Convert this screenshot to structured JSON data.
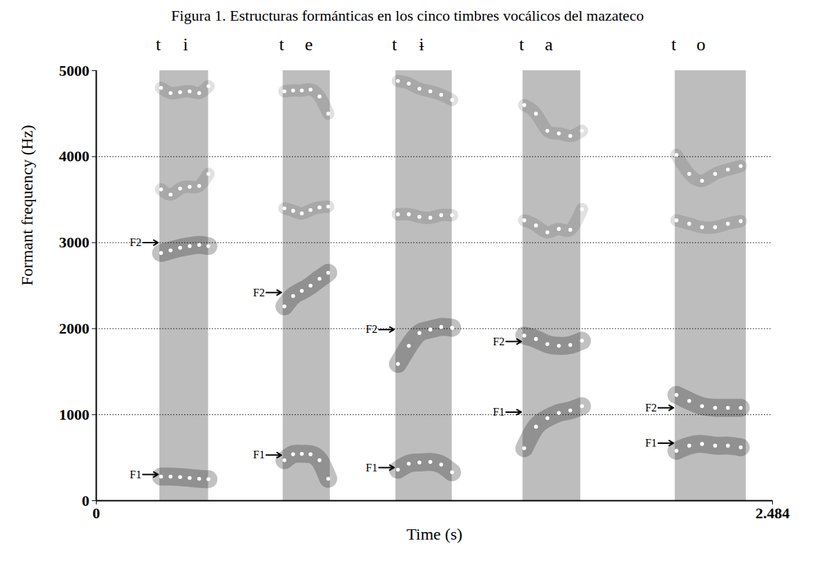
{
  "chart_data": {
    "type": "spectrogram",
    "title": "Figura 1. Estructuras formánticas en los cinco timbres vocálicos del mazateco",
    "x_label": "Time (s)",
    "y_label": "Formant frequency (Hz)",
    "xlim": [
      0,
      2.484
    ],
    "xticks": [
      0,
      2.484
    ],
    "ylim": [
      0,
      5000
    ],
    "yticks": [
      0,
      1000,
      2000,
      3000,
      4000,
      5000
    ],
    "grid": true,
    "marker": "dot",
    "color": "#ffffff",
    "segments": [
      {
        "consonant": "t",
        "vowel": "i",
        "start": 0.233,
        "end": 0.412,
        "x": [
          0.238,
          0.273,
          0.308,
          0.343,
          0.378,
          0.412
        ],
        "formants": [
          {
            "name": "F1",
            "arrow": 305,
            "values": [
              280,
              280,
              275,
              265,
              255,
              250
            ]
          },
          {
            "name": "F2",
            "arrow": 3000,
            "values": [
              2880,
              2910,
              2940,
              2960,
              2975,
              2960
            ]
          }
        ],
        "tracks": [
          [
            3620,
            3560,
            3630,
            3650,
            3660,
            3800
          ],
          [
            4800,
            4740,
            4750,
            4760,
            4740,
            4820
          ]
        ]
      },
      {
        "consonant": "t",
        "vowel": "e",
        "start": 0.686,
        "end": 0.859,
        "x": [
          0.691,
          0.723,
          0.755,
          0.787,
          0.82,
          0.852
        ],
        "formants": [
          {
            "name": "F1",
            "arrow": 530,
            "values": [
              470,
              540,
              545,
              540,
              470,
              255
            ]
          },
          {
            "name": "F2",
            "arrow": 2420,
            "values": [
              2260,
              2380,
              2440,
              2500,
              2580,
              2650
            ]
          }
        ],
        "tracks": [
          [
            3400,
            3370,
            3340,
            3380,
            3410,
            3420
          ],
          [
            4760,
            4770,
            4770,
            4780,
            4700,
            4500
          ]
        ]
      },
      {
        "consonant": "t",
        "vowel": "ɨ",
        "start": 1.1,
        "end": 1.307,
        "x": [
          1.108,
          1.148,
          1.187,
          1.227,
          1.267,
          1.307
        ],
        "formants": [
          {
            "name": "F1",
            "arrow": 385,
            "values": [
              360,
              430,
              445,
              450,
              420,
              330
            ]
          },
          {
            "name": "F2",
            "arrow": 1990,
            "values": [
              1590,
              1800,
              1950,
              1990,
              2020,
              2010
            ]
          }
        ],
        "tracks": [
          [
            3330,
            3330,
            3300,
            3290,
            3320,
            3320
          ],
          [
            4880,
            4850,
            4790,
            4760,
            4720,
            4660
          ]
        ]
      },
      {
        "consonant": "t",
        "vowel": "a",
        "start": 1.567,
        "end": 1.779,
        "x": [
          1.572,
          1.615,
          1.657,
          1.699,
          1.741,
          1.784
        ],
        "formants": [
          {
            "name": "F1",
            "arrow": 1030,
            "values": [
              610,
              860,
              960,
              1020,
              1050,
              1100
            ]
          },
          {
            "name": "F2",
            "arrow": 1850,
            "values": [
              1920,
              1880,
              1820,
              1800,
              1810,
              1860
            ]
          }
        ],
        "tracks": [
          [
            3260,
            3200,
            3120,
            3160,
            3150,
            3390
          ],
          [
            4600,
            4500,
            4300,
            4270,
            4240,
            4300
          ]
        ]
      },
      {
        "consonant": "t",
        "vowel": "o",
        "start": 2.126,
        "end": 2.387,
        "x": [
          2.131,
          2.178,
          2.225,
          2.273,
          2.32,
          2.367
        ],
        "formants": [
          {
            "name": "F1",
            "arrow": 670,
            "values": [
              580,
              640,
              660,
              640,
              640,
              620
            ]
          },
          {
            "name": "F2",
            "arrow": 1080,
            "values": [
              1230,
              1160,
              1100,
              1080,
              1080,
              1080
            ]
          }
        ],
        "tracks": [
          [
            3260,
            3220,
            3180,
            3180,
            3220,
            3250
          ],
          [
            4020,
            3800,
            3720,
            3800,
            3850,
            3890
          ]
        ]
      }
    ]
  }
}
